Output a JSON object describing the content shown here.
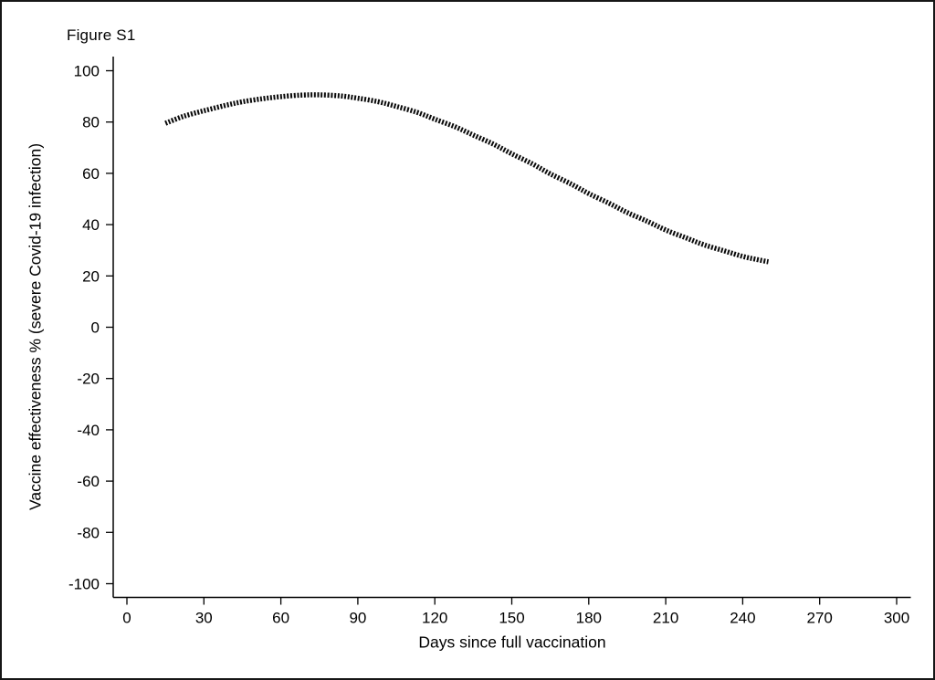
{
  "figure": {
    "title": "Figure S1"
  },
  "chart_data": {
    "type": "line",
    "title": "Figure S1",
    "xlabel": "Days since full vaccination",
    "ylabel": "Vaccine effectiveness % (severe Covid-19 infection)",
    "xlim": [
      -5,
      305
    ],
    "ylim": [
      -105,
      105
    ],
    "x_ticks": [
      0,
      30,
      60,
      90,
      120,
      150,
      180,
      210,
      240,
      270,
      300
    ],
    "y_ticks": [
      100,
      80,
      60,
      40,
      20,
      0,
      -20,
      -40,
      -60,
      -80,
      -100
    ],
    "grid": false,
    "legend_position": "none",
    "axis_color": "#000000",
    "series": [
      {
        "name": "Vaccine effectiveness, severe Covid-19 infection",
        "style": "dashed-thick",
        "color": "#0a0a0a",
        "points": [
          [
            15,
            79.5
          ],
          [
            22,
            82.2
          ],
          [
            30,
            84.4
          ],
          [
            38,
            86.4
          ],
          [
            45,
            87.9
          ],
          [
            53,
            89.1
          ],
          [
            60,
            89.9
          ],
          [
            68,
            90.5
          ],
          [
            75,
            90.6
          ],
          [
            83,
            90.2
          ],
          [
            90,
            89.3
          ],
          [
            98,
            87.9
          ],
          [
            105,
            86.1
          ],
          [
            113,
            83.8
          ],
          [
            120,
            81.1
          ],
          [
            128,
            78.1
          ],
          [
            135,
            74.9
          ],
          [
            143,
            71.3
          ],
          [
            150,
            67.6
          ],
          [
            158,
            63.7
          ],
          [
            165,
            59.8
          ],
          [
            173,
            55.9
          ],
          [
            180,
            52.1
          ],
          [
            188,
            48.3
          ],
          [
            195,
            44.7
          ],
          [
            203,
            41.2
          ],
          [
            210,
            37.9
          ],
          [
            218,
            34.8
          ],
          [
            225,
            32.1
          ],
          [
            233,
            29.7
          ],
          [
            240,
            27.6
          ],
          [
            245,
            26.5
          ],
          [
            250,
            25.5
          ]
        ]
      }
    ]
  }
}
